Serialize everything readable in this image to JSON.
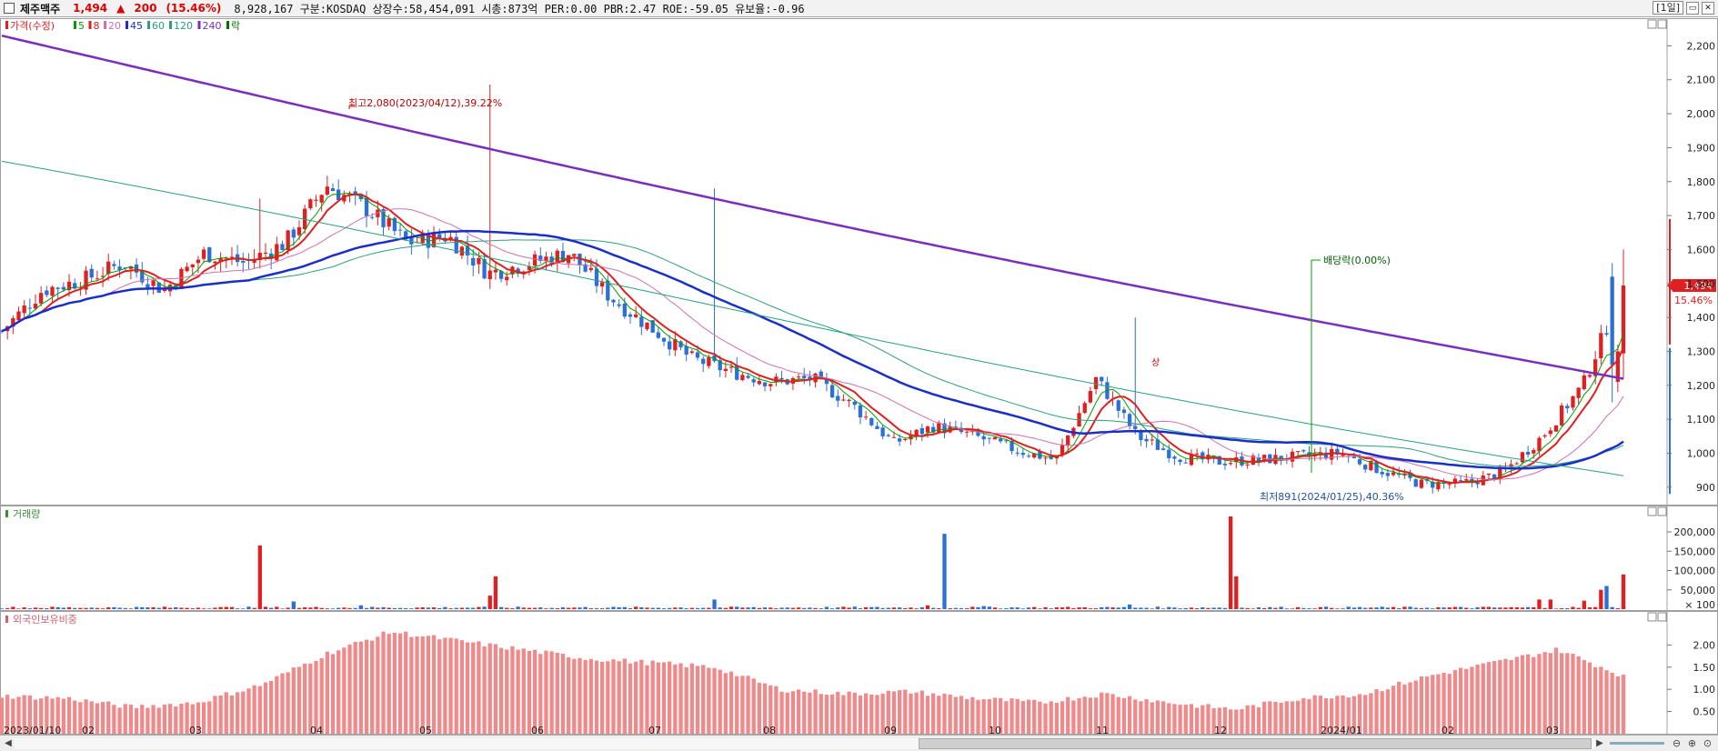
{
  "header": {
    "stock_name": "제주맥주",
    "price": "1,494",
    "change_symbol": "▲",
    "change": "200",
    "change_pct": "(15.46%)",
    "info": "8,928,167  구분:KOSDAQ 상장수:58,454,091 시총:873억 PER:0.00 PBR:2.47 ROE:-59.05 유보율:-0.96",
    "period": "[1일]",
    "min_icon": "minimize-icon",
    "close_icon": "close-icon"
  },
  "price_panel": {
    "legend": [
      {
        "label": "가격(수정)",
        "color": "#e02020"
      },
      {
        "label": "5",
        "color": "#00a000"
      },
      {
        "label": "8",
        "color": "#e02020"
      },
      {
        "label": "20",
        "color": "#d070b0"
      },
      {
        "label": "45",
        "color": "#1a2ec8"
      },
      {
        "label": "60",
        "color": "#2aa080"
      },
      {
        "label": "120",
        "color": "#2aa080"
      },
      {
        "label": "240",
        "color": "#7a2ec0"
      },
      {
        "label": "락",
        "color": "#007000"
      }
    ],
    "annotation_high": "최고2,080(2023/04/12),39.22%",
    "annotation_low": "최저891(2024/01/25),40.36%",
    "annotation_dividend": "배당락(0.00%)",
    "annotation_limit_up": "상",
    "current_price_label": "1,494",
    "current_pct_label": "15.46%"
  },
  "volume_panel": {
    "title": "거래량",
    "unit_label": "× 100"
  },
  "foreign_panel": {
    "title": "외국인보유비중"
  },
  "x_axis_labels": [
    "2023/01/10",
    "02",
    "03",
    "04",
    "05",
    "06",
    "07",
    "08",
    "09",
    "10",
    "11",
    "12",
    "2024/01",
    "02",
    "03"
  ],
  "colors": {
    "up": "#e02020",
    "down": "#2c6fd6",
    "foreign_bar": "#f08a8a",
    "ma240": "#7a2ec0",
    "ma45": "#1a2ec8"
  },
  "chart_data": [
    {
      "type": "candlestick",
      "title": "제주맥주 일봉",
      "y_ticks": [
        900,
        1000,
        1100,
        1200,
        1300,
        1400,
        1500,
        1600,
        1700,
        1800,
        1900,
        2000,
        2100,
        2200
      ],
      "y_tick_labels": [
        "900",
        "1,000",
        "1,100",
        "1,200",
        "1,300",
        "1,400",
        "1,500",
        "1,600",
        "1,700",
        "1,800",
        "1,900",
        "2,000",
        "2,100",
        "2,200"
      ],
      "ylim": [
        870,
        2260
      ],
      "months": [
        "2023/01/10",
        "02",
        "03",
        "04",
        "05",
        "06",
        "07",
        "08",
        "09",
        "10",
        "11",
        "12",
        "2024/01",
        "02",
        "03"
      ],
      "close_approx": [
        1360,
        1480,
        1510,
        1560,
        1480,
        1590,
        1560,
        1620,
        1790,
        1720,
        1620,
        1640,
        1530,
        1560,
        1590,
        1460,
        1370,
        1280,
        1240,
        1210,
        1220,
        1140,
        1030,
        1080,
        1050,
        1010,
        980,
        1220,
        1050,
        990,
        975,
        980,
        990,
        1000,
        950,
        910,
        910,
        940,
        1050,
        1200,
        1494
      ],
      "high": 2080,
      "high_date": "2023/04/12",
      "low": 891,
      "low_date": "2024/01/25",
      "last": 1494
    },
    {
      "type": "bar",
      "title": "거래량",
      "y_ticks": [
        "200,000",
        "150,000",
        "100,000",
        "50,000"
      ],
      "ylim": [
        0,
        240000
      ],
      "spikes_approx": [
        {
          "month": "2023/01",
          "value": 165000
        },
        {
          "month": "02",
          "value": 195000
        },
        {
          "month": "11",
          "value": 240000
        },
        {
          "month": "03",
          "value": 90000
        }
      ]
    },
    {
      "type": "bar",
      "title": "외국인보유비중",
      "y_ticks": [
        "2.00",
        "1.50",
        "1.00",
        "0.50"
      ],
      "ylim": [
        0,
        2.5
      ],
      "values_approx": [
        0.85,
        0.8,
        0.6,
        0.7,
        1.1,
        1.8,
        2.3,
        2.1,
        1.9,
        1.7,
        1.6,
        1.5,
        1.0,
        0.9,
        0.95,
        0.8,
        0.7,
        0.9,
        0.7,
        0.55,
        0.8,
        0.9,
        1.3,
        1.6,
        1.9,
        1.3
      ]
    }
  ]
}
